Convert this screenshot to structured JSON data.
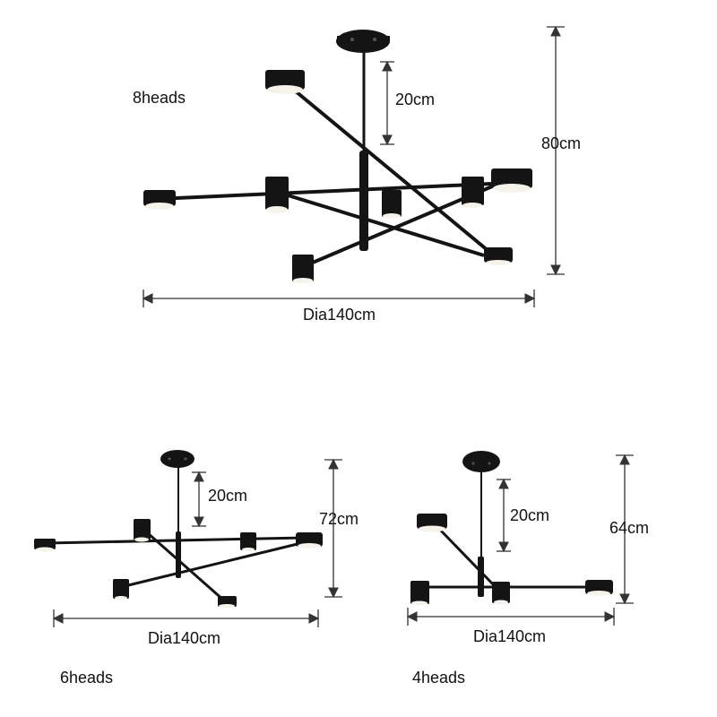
{
  "variants": {
    "eight": {
      "heads_label": "8heads",
      "drop_label": "20cm",
      "height_label": "80cm",
      "diameter_label": "Dia140cm"
    },
    "six": {
      "heads_label": "6heads",
      "drop_label": "20cm",
      "height_label": "72cm",
      "diameter_label": "Dia140cm"
    },
    "four": {
      "heads_label": "4heads",
      "drop_label": "20cm",
      "height_label": "64cm",
      "diameter_label": "Dia140cm"
    }
  },
  "colors": {
    "fixture": "#141414",
    "lamp_glow": "#f6f3ea",
    "dimension_line": "#333333"
  }
}
